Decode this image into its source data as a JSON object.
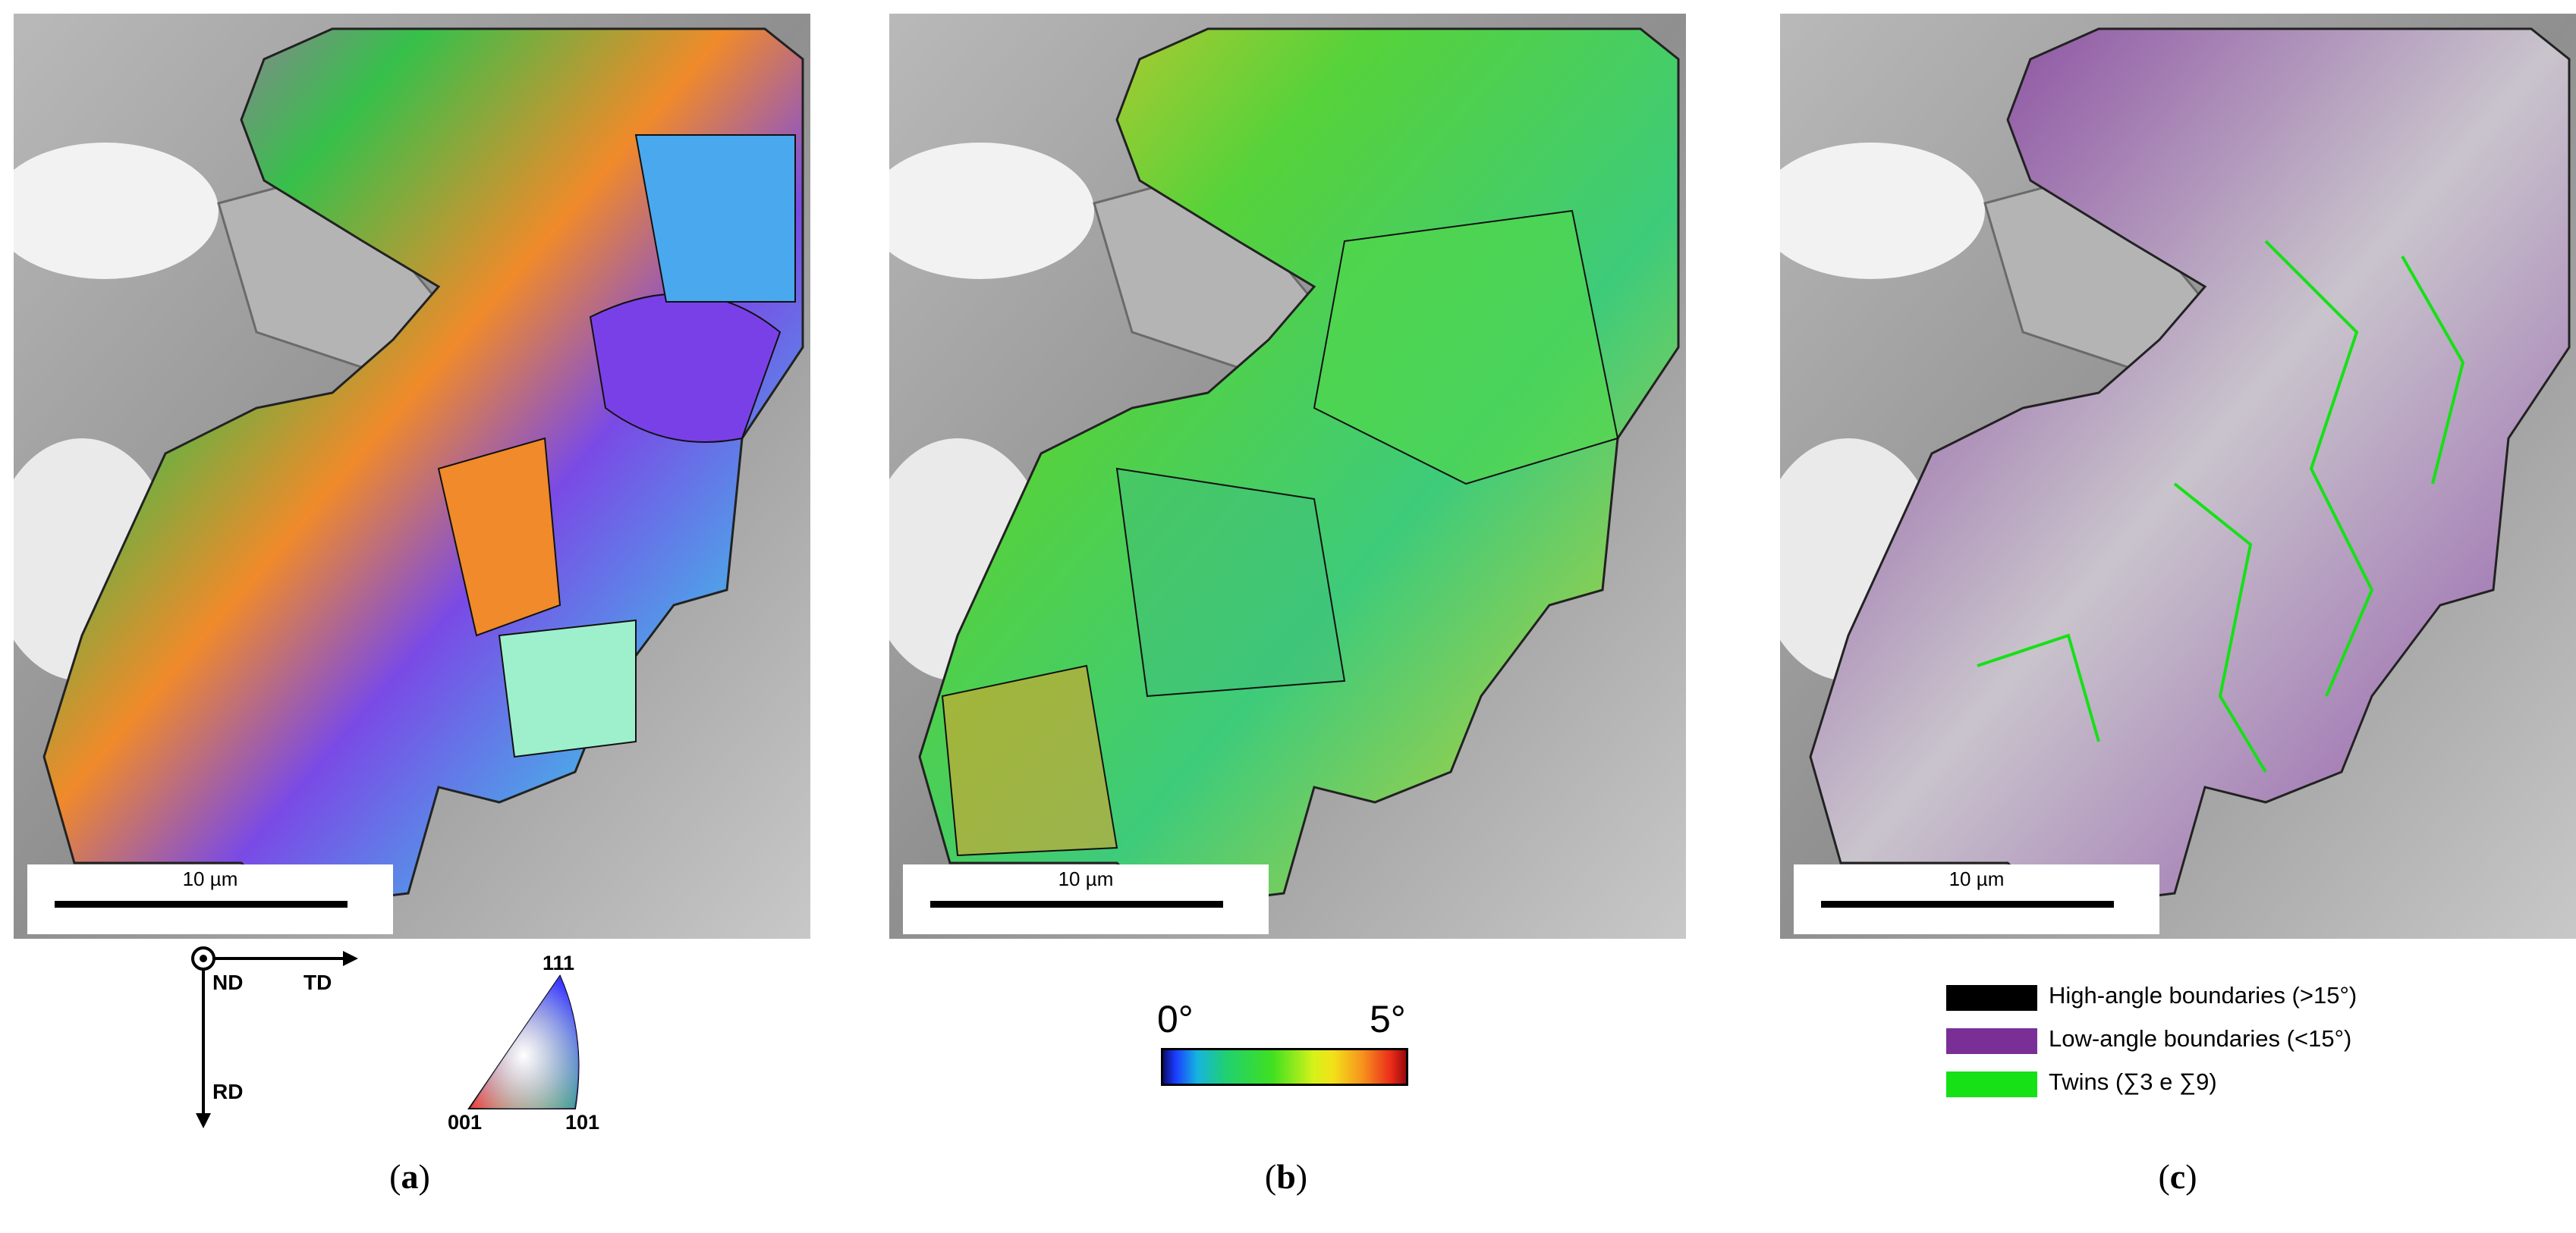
{
  "panels": {
    "a": {
      "caption_open": "(",
      "caption_letter": "a",
      "caption_close": ")",
      "scale_label": "10 µm"
    },
    "b": {
      "caption_open": "(",
      "caption_letter": "b",
      "caption_close": ")",
      "scale_label": "10 µm"
    },
    "c": {
      "caption_open": "(",
      "caption_letter": "c",
      "caption_close": ")",
      "scale_label": "10 µm"
    }
  },
  "axes": {
    "nd": "ND",
    "td": "TD",
    "rd": "RD"
  },
  "ipf_triangle": {
    "top": "111",
    "left": "001",
    "right": "101"
  },
  "kam_legend": {
    "min": "0°",
    "max": "5°"
  },
  "boundary_legend": [
    {
      "label": "High-angle boundaries (>15°)",
      "color": "#000000"
    },
    {
      "label": "Low-angle boundaries (<15°)",
      "color": "#7a2f96"
    },
    {
      "label": "Twins (∑3 e ∑9)",
      "color": "#16e016"
    }
  ],
  "colors": {
    "sem_background": "#a9a9a9",
    "kam_map": "#5fd02a",
    "ipf_map": "#c07ad8"
  }
}
